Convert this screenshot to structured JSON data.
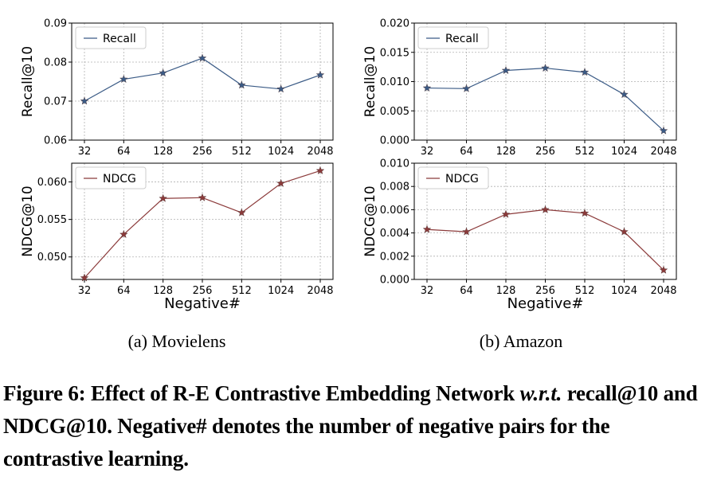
{
  "chart_data": [
    {
      "type": "line",
      "panel": "a",
      "subcaption": "(a)  Movielens",
      "ylabel": "Recall@10",
      "categories": [
        "32",
        "64",
        "128",
        "256",
        "512",
        "1024",
        "2048"
      ],
      "ylim": [
        0.06,
        0.09
      ],
      "yticks": [
        "0.06",
        "0.07",
        "0.08",
        "0.09"
      ],
      "grid": true,
      "legend": "top-left",
      "series": [
        {
          "name": "Recall",
          "color": "#3b5b86",
          "values": [
            0.07,
            0.0756,
            0.0772,
            0.081,
            0.0741,
            0.0731,
            0.0767
          ]
        }
      ]
    },
    {
      "type": "line",
      "panel": "a",
      "ylabel": "NDCG@10",
      "xlabel": "Negative#",
      "categories": [
        "32",
        "64",
        "128",
        "256",
        "512",
        "1024",
        "2048"
      ],
      "ylim": [
        0.047,
        0.0625
      ],
      "yticks": [
        "0.050",
        "0.055",
        "0.060"
      ],
      "grid": true,
      "legend": "top-left",
      "series": [
        {
          "name": "NDCG",
          "color": "#8b3a3a",
          "values": [
            0.0472,
            0.053,
            0.0578,
            0.0579,
            0.0559,
            0.0598,
            0.0615
          ]
        }
      ]
    },
    {
      "type": "line",
      "panel": "b",
      "subcaption": "(b)  Amazon",
      "ylabel": "Recall@10",
      "categories": [
        "32",
        "64",
        "128",
        "256",
        "512",
        "1024",
        "2048"
      ],
      "ylim": [
        0.0,
        0.02
      ],
      "yticks": [
        "0.000",
        "0.005",
        "0.010",
        "0.015",
        "0.020"
      ],
      "grid": true,
      "legend": "top-left",
      "series": [
        {
          "name": "Recall",
          "color": "#3b5b86",
          "values": [
            0.0089,
            0.0088,
            0.0119,
            0.0123,
            0.0116,
            0.0078,
            0.0016
          ]
        }
      ]
    },
    {
      "type": "line",
      "panel": "b",
      "ylabel": "NDCG@10",
      "xlabel": "Negative#",
      "categories": [
        "32",
        "64",
        "128",
        "256",
        "512",
        "1024",
        "2048"
      ],
      "ylim": [
        0.0,
        0.01
      ],
      "yticks": [
        "0.000",
        "0.002",
        "0.004",
        "0.006",
        "0.008",
        "0.010"
      ],
      "grid": true,
      "legend": "top-left",
      "series": [
        {
          "name": "NDCG",
          "color": "#8b3a3a",
          "values": [
            0.0043,
            0.0041,
            0.0056,
            0.006,
            0.0057,
            0.0041,
            0.0008
          ]
        }
      ]
    }
  ],
  "caption": {
    "part1": "Figure 6: Effect of R-E Contrastive Embedding Network ",
    "italic": "w.r.t.",
    "part2": " recall@10 and NDCG@10. Negative# denotes the number of negative pairs for the contrastive learning."
  }
}
